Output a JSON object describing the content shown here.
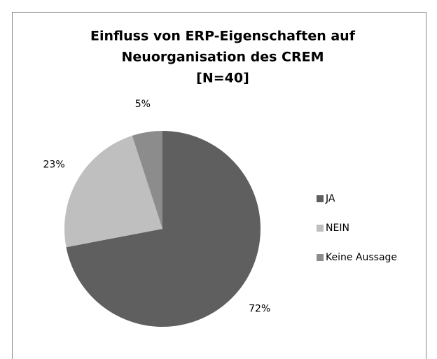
{
  "chart_data": {
    "type": "pie",
    "title": [
      "Einfluss von ERP-Eigenschaften auf",
      "Neuorganisation des CREM",
      "[N=40]"
    ],
    "categories": [
      "JA",
      "NEIN",
      "Keine Aussage"
    ],
    "values": [
      72,
      23,
      5
    ],
    "value_labels": [
      "72%",
      "23%",
      "5%"
    ],
    "colors": [
      "#5f5f5f",
      "#bfbfbf",
      "#8c8c8c"
    ],
    "legend": "right"
  }
}
